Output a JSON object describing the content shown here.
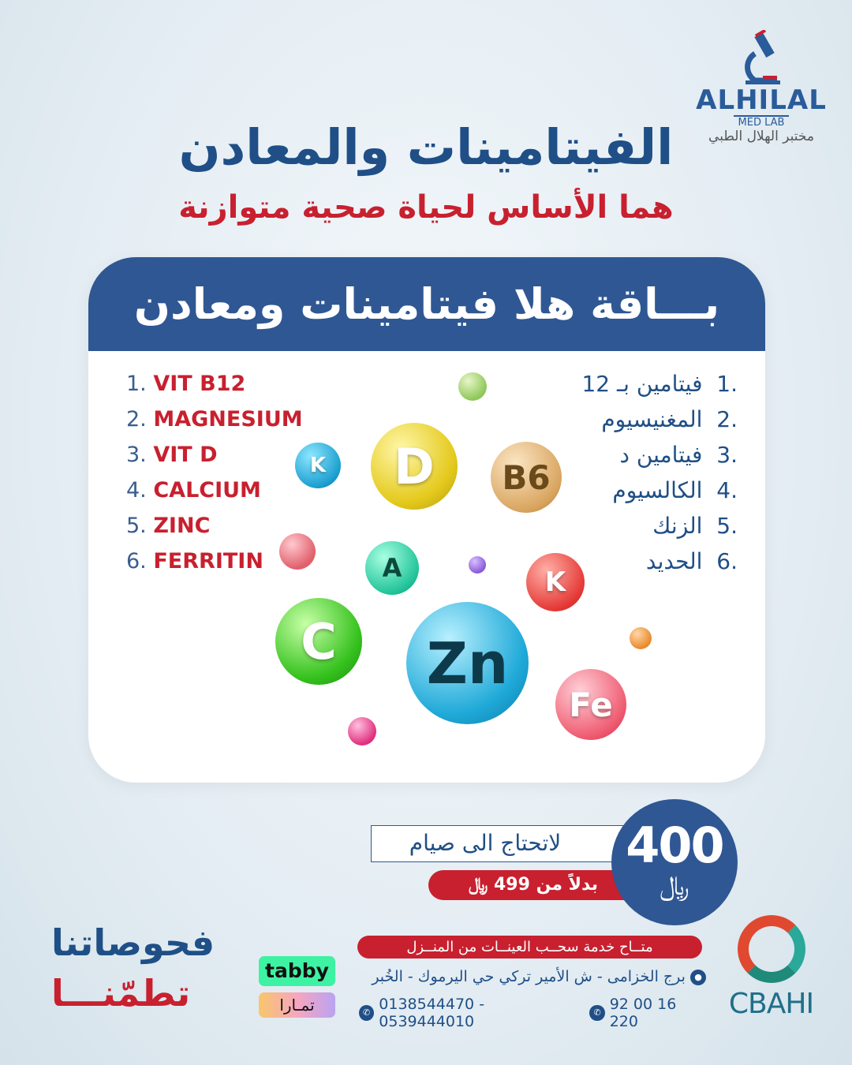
{
  "logo": {
    "name_en": "ALHILAL",
    "sub_en": "MED LAB",
    "name_ar": "مختبر الهلال الطبي"
  },
  "title": "الفيتامينات والمعادن",
  "subtitle": "هما الأساس لحياة صحية متوازنة",
  "card": {
    "header": "بـــاقة هلا فيتامينات ومعادن",
    "items_en": [
      {
        "num": "1.",
        "label": "VIT B12"
      },
      {
        "num": "2.",
        "label": "MAGNESIUM"
      },
      {
        "num": "3.",
        "label": "VIT D"
      },
      {
        "num": "4.",
        "label": "CALCIUM"
      },
      {
        "num": "5.",
        "label": "ZINC"
      },
      {
        "num": "6.",
        "label": "FERRITIN"
      }
    ],
    "items_ar": [
      {
        "num": ".1",
        "label": "فيتامين بـ 12"
      },
      {
        "num": ".2",
        "label": "المغنيسيوم"
      },
      {
        "num": ".3",
        "label": "فيتامين د"
      },
      {
        "num": ".4",
        "label": "الكالسيوم"
      },
      {
        "num": ".5",
        "label": "الزنك"
      },
      {
        "num": ".6",
        "label": "الحديد"
      }
    ],
    "balls": [
      "K",
      "D",
      "B6",
      "A",
      "K",
      "C",
      "Zn",
      "Fe"
    ]
  },
  "price": {
    "no_fasting": "لاتحتاج الى صيام",
    "old_price": "بدلاً من 499 ﷼",
    "value": "400",
    "currency_symbol": "﷼"
  },
  "contact": {
    "service": "متــاح خدمة سحــب العينــات من المنــزل",
    "address": "برج الخزامى - ش الأمير تركي حي اليرموك - الخُبر",
    "whatsapp": "0138544470 - 0539444010",
    "phone": "92 00 16 220"
  },
  "accreditation": "CBAHI",
  "payments": {
    "tabby": "tabby",
    "tamara": "تمـارا"
  },
  "slogan": {
    "line1": "فحوصاتنا",
    "line2": "تطمّنـــا"
  },
  "colors": {
    "brand_blue": "#2f5793",
    "brand_red": "#c8202f"
  }
}
